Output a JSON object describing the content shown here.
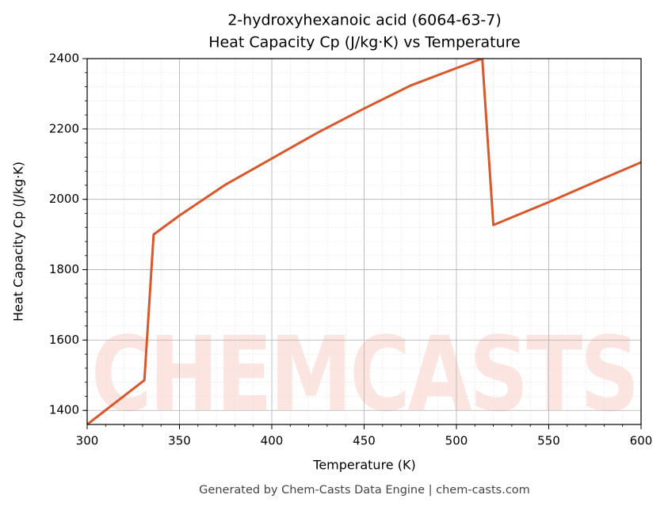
{
  "chart_data": {
    "type": "line",
    "title": [
      "2-hydroxyhexanoic acid (6064-63-7)",
      "Heat Capacity Cp (J/kg·K) vs Temperature"
    ],
    "xlabel": "Temperature (K)",
    "ylabel": "Heat Capacity Cp (J/kg·K)",
    "footer": "Generated by Chem-Casts Data Engine | chem-casts.com",
    "watermark": "CHEMCASTS",
    "x": [
      300,
      331,
      336,
      350,
      375,
      400,
      425,
      450,
      475,
      500,
      514,
      520,
      550,
      575,
      600
    ],
    "series": [
      {
        "name": "Cp",
        "color": "#d9572b",
        "values": [
          1360,
          1486,
          1900,
          1954,
          2042,
          2116,
          2190,
          2258,
          2323,
          2373,
          2400,
          1927,
          1992,
          2049,
          2105
        ]
      }
    ],
    "xlim": [
      300,
      600
    ],
    "xticks": [
      300,
      350,
      400,
      450,
      500,
      550,
      600
    ],
    "ylim": [
      1360,
      2400
    ],
    "yticks": [
      1400,
      1600,
      1800,
      2000,
      2200,
      2400
    ],
    "grid": true,
    "minor_grid": true
  }
}
